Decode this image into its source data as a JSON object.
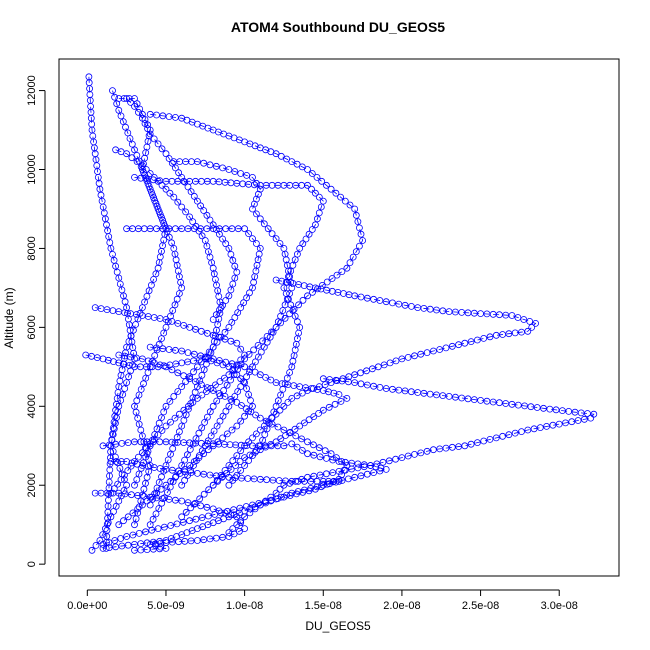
{
  "chart_data": {
    "type": "scatter",
    "title": "ATOM4 Southbound DU_GEOS5",
    "xlabel": "DU_GEOS5",
    "ylabel": "Altitude (m)",
    "xlim": [
      -1.8e-09,
      3.38e-08
    ],
    "ylim": [
      -300,
      12800
    ],
    "x_ticks": [
      0,
      5e-09,
      1e-08,
      1.5e-08,
      2e-08,
      2.5e-08,
      3e-08
    ],
    "x_tick_labels": [
      "0.0e+00",
      "5.0e-09",
      "1.0e-08",
      "1.5e-08",
      "2.0e-08",
      "2.5e-08",
      "3.0e-08"
    ],
    "y_ticks": [
      0,
      2000,
      4000,
      6000,
      8000,
      10000,
      12000
    ],
    "y_tick_labels": [
      "0",
      "2000",
      "4000",
      "6000",
      "8000",
      "10000",
      "12000"
    ],
    "marker": "open-circle",
    "line_style": "dashed",
    "series_color": "#0000ff",
    "series": [
      {
        "x": [
          1e-10,
          3e-10,
          8e-10,
          1.5e-09,
          2.5e-09,
          3e-09,
          2e-09,
          1.5e-09,
          2.5e-09,
          1.5e-09,
          8e-10,
          3e-10
        ],
        "y": [
          12350,
          11000,
          9500,
          8000,
          6500,
          5200,
          4000,
          3000,
          2000,
          1200,
          600,
          350
        ]
      },
      {
        "x": [
          1.6e-09,
          2e-09,
          3e-09,
          4e-09,
          5e-09,
          4.5e-09,
          3.5e-09,
          2.5e-09,
          2e-09,
          1.5e-09,
          1.2e-09
        ],
        "y": [
          12000,
          11500,
          10500,
          9500,
          8500,
          7500,
          6500,
          5500,
          4500,
          3000,
          400
        ]
      },
      {
        "x": [
          2e-09,
          3e-09,
          4e-09,
          3.5e-09,
          4.5e-09,
          5.5e-09,
          6e-09,
          5e-09,
          4e-09,
          3e-09,
          4e-09,
          3e-09
        ],
        "y": [
          11800,
          11800,
          11000,
          10000,
          9000,
          8000,
          7000,
          6000,
          5000,
          4000,
          2500,
          1000
        ]
      },
      {
        "x": [
          4e-09,
          6e-09,
          8e-09,
          1e-08,
          1.2e-08,
          1.4e-08,
          1.55e-08,
          1.7e-08,
          1.75e-08,
          1.65e-08,
          1.4e-08,
          1.2e-08,
          1e-08,
          8e-09,
          6e-09,
          4e-09
        ],
        "y": [
          11400,
          11300,
          11000,
          10700,
          10400,
          10000,
          9500,
          9000,
          8200,
          7500,
          6800,
          6000,
          5200,
          4000,
          2500,
          1000
        ]
      },
      {
        "x": [
          5.5e-09,
          7e-09,
          9e-09,
          1.05e-08,
          1.1e-08,
          1.05e-08,
          1.15e-08,
          1.25e-08,
          1.3e-08,
          1.2e-08,
          1.05e-08,
          9e-09,
          7.5e-09,
          6e-09
        ],
        "y": [
          10200,
          10200,
          10000,
          9800,
          9500,
          9000,
          8500,
          8000,
          7000,
          6000,
          5000,
          4000,
          3000,
          2000
        ]
      },
      {
        "x": [
          3e-09,
          5e-09,
          8e-09,
          1.1e-08,
          1.4e-08,
          1.5e-08,
          1.45e-08,
          1.35e-08,
          1.25e-08,
          1.35e-08,
          1.3e-08,
          1.2e-08,
          1.1e-08,
          9e-09
        ],
        "y": [
          9800,
          9700,
          9700,
          9600,
          9600,
          9200,
          8600,
          8000,
          7000,
          6000,
          5000,
          4000,
          3000,
          2000
        ]
      },
      {
        "x": [
          2.5e-09,
          4e-09,
          6e-09,
          8e-09,
          1e-08,
          1.1e-08,
          1.05e-08,
          9e-09,
          7e-09,
          5e-09,
          3e-09
        ],
        "y": [
          8500,
          8500,
          8500,
          8500,
          8500,
          8000,
          7000,
          6000,
          5000,
          4000,
          2000
        ]
      },
      {
        "x": [
          1.8e-09,
          2.5e-09,
          3.5e-09,
          4.5e-09,
          5.5e-09,
          6.5e-09,
          7.5e-09,
          8e-09,
          8.5e-09,
          8e-09,
          7e-09,
          6e-09,
          5e-09,
          4e-09
        ],
        "y": [
          10500,
          10400,
          10100,
          9700,
          9300,
          8800,
          8200,
          7500,
          6500,
          5500,
          4500,
          3500,
          2500,
          1500
        ]
      },
      {
        "x": [
          1.2e-08,
          1.45e-08,
          1.7e-08,
          1.9e-08,
          2.1e-08,
          2.3e-08,
          2.5e-08,
          2.7e-08,
          2.85e-08,
          2.8e-08,
          2.6e-08,
          2.4e-08,
          2.2e-08,
          2e-08,
          1.85e-08,
          1.7e-08,
          1.55e-08,
          1.4e-08,
          1.3e-08,
          1.2e-08,
          1.1e-08,
          1e-08,
          9e-09,
          8e-09
        ],
        "y": [
          7200,
          7000,
          6800,
          6650,
          6500,
          6400,
          6350,
          6300,
          6100,
          5900,
          5800,
          5600,
          5400,
          5200,
          5000,
          4800,
          4600,
          4400,
          4200,
          3800,
          3400,
          3000,
          2500,
          2000
        ]
      },
      {
        "x": [
          1.5e-08,
          1.7e-08,
          1.9e-08,
          2.1e-08,
          2.3e-08,
          2.5e-08,
          2.7e-08,
          2.9e-08,
          3.1e-08,
          3.22e-08,
          3.2e-08,
          3e-08,
          2.8e-08,
          2.6e-08,
          2.4e-08,
          2.2e-08,
          2e-08,
          1.8e-08,
          1.6e-08,
          1.4e-08,
          1.25e-08,
          1.2e-08,
          1.1e-08,
          1e-08,
          9e-09
        ],
        "y": [
          4700,
          4600,
          4450,
          4350,
          4250,
          4150,
          4050,
          3950,
          3850,
          3800,
          3700,
          3550,
          3400,
          3200,
          3000,
          2900,
          2700,
          2500,
          2350,
          2200,
          2000,
          1800,
          1500,
          1200,
          800
        ]
      },
      {
        "x": [
          4e-09,
          6e-09,
          8e-09,
          1e-08,
          1.1e-08,
          1.2e-08,
          1.35e-08,
          1.5e-08,
          1.6e-08,
          1.65e-08,
          1.5e-08,
          1.35e-08,
          1.2e-08,
          1e-08,
          8e-09,
          6e-09
        ],
        "y": [
          5500,
          5400,
          5200,
          5000,
          4800,
          4600,
          4500,
          4400,
          4300,
          4200,
          3900,
          3500,
          3100,
          2700,
          2000,
          1200
        ]
      },
      {
        "x": [
          1e-09,
          3e-09,
          5e-09,
          8e-09,
          1.05e-08,
          1.25e-08,
          1.3e-08,
          1.4e-08,
          1.6e-08,
          1.8e-08,
          1.9e-08,
          1.7e-08,
          1.5e-08,
          1.3e-08,
          1.1e-08,
          9e-09,
          7e-09,
          5e-09,
          3e-09,
          1e-09
        ],
        "y": [
          3000,
          3100,
          3100,
          3050,
          3000,
          3000,
          3050,
          2800,
          2600,
          2500,
          2400,
          2200,
          2000,
          1800,
          1500,
          1200,
          900,
          600,
          500,
          400
        ]
      },
      {
        "x": [
          2e-09,
          3.5e-09,
          5e-09,
          6.5e-09,
          8e-09,
          9.5e-09,
          1.1e-08,
          1.25e-08,
          1.4e-08,
          1.55e-08,
          1.65e-08,
          1.6e-08,
          1.45e-08,
          1.25e-08,
          1.05e-08,
          8.5e-09,
          6.5e-09,
          4.5e-09,
          2.5e-09,
          1e-09
        ],
        "y": [
          5300,
          5200,
          5000,
          4700,
          4400,
          4100,
          3700,
          3400,
          3100,
          2800,
          2500,
          2150,
          1900,
          1700,
          1500,
          1300,
          1100,
          900,
          700,
          500
        ]
      },
      {
        "x": [
          -1e-10,
          1e-09,
          2e-09,
          3e-09,
          4.5e-09,
          6e-09,
          7.5e-09,
          9e-09,
          1e-08,
          1.05e-08,
          9.5e-09,
          8e-09,
          6.5e-09,
          5e-09,
          3.5e-09,
          2e-09
        ],
        "y": [
          5300,
          5200,
          5100,
          5000,
          5000,
          5100,
          5200,
          5000,
          4600,
          4000,
          3500,
          3000,
          2500,
          2000,
          1500,
          1000
        ]
      },
      {
        "x": [
          5e-10,
          2e-09,
          3.5e-09,
          5e-09,
          6.5e-09,
          8e-09,
          9.5e-09,
          1e-08,
          9e-09,
          7e-09,
          5e-09,
          3e-09,
          1.5e-09
        ],
        "y": [
          6500,
          6400,
          6300,
          6200,
          6000,
          5800,
          5600,
          5300,
          4800,
          4200,
          3500,
          2600,
          1800
        ]
      },
      {
        "x": [
          5e-10,
          2e-09,
          4e-09,
          6e-09,
          8e-09,
          9.5e-09,
          1e-08,
          9e-09,
          7e-09,
          5e-09,
          4e-09,
          5e-09,
          3e-09
        ],
        "y": [
          1800,
          1800,
          1700,
          1600,
          1400,
          1200,
          900,
          700,
          600,
          550,
          500,
          400,
          350
        ]
      },
      {
        "x": [
          2.5e-09,
          3e-09,
          3.5e-09,
          4e-09,
          5e-09,
          6e-09,
          7e-09,
          8e-09,
          9e-09,
          9.5e-09,
          9e-09,
          8e-09
        ],
        "y": [
          11800,
          11600,
          11300,
          10900,
          10400,
          9800,
          9200,
          8600,
          8000,
          7400,
          6800,
          6200
        ]
      },
      {
        "x": [
          1.5e-09,
          2.5e-09,
          3.5e-09,
          5e-09,
          7e-09,
          9e-09,
          1.1e-08,
          1.3e-08,
          1.5e-08,
          1.6e-08
        ],
        "y": [
          2600,
          2600,
          2500,
          2400,
          2300,
          2200,
          2150,
          2100,
          2100,
          2100
        ]
      }
    ]
  }
}
